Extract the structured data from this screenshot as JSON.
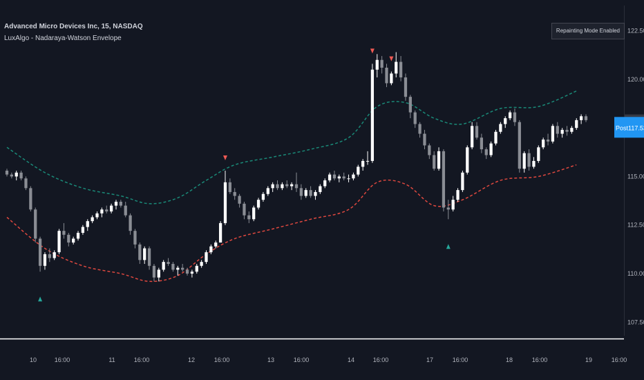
{
  "header": {
    "symbol_title": "Advanced Micro Devices Inc, 15, NASDAQ",
    "indicator_name": "LuxAlgo - Nadaraya-Watson Envelope",
    "repaint_notice": "Repainting Mode Enabled"
  },
  "price_labels": {
    "last_price": "117.91",
    "post_label": "Post",
    "post_price": "117.53"
  },
  "colors": {
    "background": "#131722",
    "candle_up": "#ffffff",
    "candle_down": "#8a8d94",
    "upper_band": "#1a8a78",
    "lower_band": "#e0483f",
    "sell_marker": "#f05a54",
    "buy_marker": "#26a69a",
    "post_tag": "#2196f3",
    "axis_line": "#ffffff"
  },
  "chart_data": {
    "type": "candlestick",
    "title": "Advanced Micro Devices Inc, 15, NASDAQ",
    "y_axis": {
      "ylim": [
        106.8,
        123.8
      ],
      "tick_labels": [
        "107.50",
        "110.00",
        "112.50",
        "115.00",
        "117.50",
        "120.00",
        "122.50"
      ],
      "position": "right"
    },
    "x_axis": {
      "tick_labels": [
        "10",
        "16:00",
        "11",
        "16:00",
        "12",
        "16:00",
        "13",
        "16:00",
        "14",
        "16:00",
        "17",
        "16:00",
        "18",
        "16:00",
        "19",
        "16:00"
      ]
    },
    "grid": false,
    "series": [
      {
        "name": "price",
        "kind": "ohlc",
        "points": [
          [
            115.3,
            115.4,
            115.0,
            115.1
          ],
          [
            115.1,
            115.2,
            114.9,
            115.0
          ],
          [
            115.0,
            115.3,
            114.8,
            115.2
          ],
          [
            115.2,
            115.3,
            114.8,
            114.9
          ],
          [
            114.9,
            115.0,
            114.3,
            114.4
          ],
          [
            114.4,
            114.5,
            113.2,
            113.3
          ],
          [
            113.3,
            113.4,
            111.6,
            111.8
          ],
          [
            111.8,
            111.9,
            110.1,
            110.4
          ],
          [
            110.4,
            111.1,
            110.2,
            111.0
          ],
          [
            111.0,
            111.3,
            110.6,
            110.8
          ],
          [
            110.8,
            111.2,
            110.7,
            111.1
          ],
          [
            111.1,
            112.3,
            111.0,
            112.2
          ],
          [
            112.2,
            112.6,
            111.8,
            112.0
          ],
          [
            112.0,
            112.1,
            111.4,
            111.6
          ],
          [
            111.6,
            111.9,
            111.5,
            111.8
          ],
          [
            111.8,
            112.2,
            111.7,
            112.1
          ],
          [
            112.1,
            112.5,
            112.0,
            112.4
          ],
          [
            112.4,
            112.8,
            112.2,
            112.7
          ],
          [
            112.7,
            113.0,
            112.6,
            112.9
          ],
          [
            112.9,
            113.2,
            112.8,
            113.1
          ],
          [
            113.1,
            113.4,
            112.9,
            113.3
          ],
          [
            113.3,
            113.5,
            113.1,
            113.2
          ],
          [
            113.2,
            113.6,
            113.1,
            113.5
          ],
          [
            113.5,
            113.8,
            113.3,
            113.7
          ],
          [
            113.7,
            113.8,
            113.4,
            113.5
          ],
          [
            113.5,
            113.7,
            112.9,
            113.0
          ],
          [
            113.0,
            113.1,
            112.0,
            112.2
          ],
          [
            112.2,
            112.3,
            111.3,
            111.5
          ],
          [
            111.5,
            111.6,
            110.5,
            110.7
          ],
          [
            110.7,
            111.4,
            110.5,
            111.3
          ],
          [
            111.3,
            111.4,
            110.2,
            110.4
          ],
          [
            110.4,
            110.5,
            109.6,
            109.8
          ],
          [
            109.8,
            110.3,
            109.6,
            110.2
          ],
          [
            110.2,
            110.7,
            110.1,
            110.6
          ],
          [
            110.6,
            110.8,
            110.4,
            110.5
          ],
          [
            110.5,
            110.6,
            110.1,
            110.2
          ],
          [
            110.2,
            110.4,
            109.9,
            110.3
          ],
          [
            110.3,
            110.5,
            110.1,
            110.2
          ],
          [
            110.2,
            110.3,
            109.9,
            110.0
          ],
          [
            110.0,
            110.2,
            109.8,
            110.1
          ],
          [
            110.1,
            110.5,
            110.0,
            110.4
          ],
          [
            110.4,
            110.7,
            110.3,
            110.6
          ],
          [
            110.6,
            111.2,
            110.5,
            111.1
          ],
          [
            111.1,
            111.5,
            111.0,
            111.4
          ],
          [
            111.4,
            111.7,
            111.3,
            111.6
          ],
          [
            111.6,
            112.7,
            112.0,
            112.6
          ],
          [
            112.6,
            115.3,
            112.5,
            114.7
          ],
          [
            114.7,
            114.9,
            114.1,
            114.2
          ],
          [
            114.2,
            114.4,
            113.8,
            114.0
          ],
          [
            114.0,
            114.1,
            113.4,
            113.6
          ],
          [
            113.6,
            113.7,
            112.8,
            113.0
          ],
          [
            113.0,
            113.2,
            112.6,
            112.8
          ],
          [
            112.8,
            113.5,
            112.7,
            113.4
          ],
          [
            113.4,
            113.9,
            113.3,
            113.8
          ],
          [
            113.8,
            114.2,
            113.7,
            114.1
          ],
          [
            114.1,
            114.5,
            114.0,
            114.4
          ],
          [
            114.4,
            114.7,
            114.2,
            114.6
          ],
          [
            114.6,
            114.8,
            114.3,
            114.4
          ],
          [
            114.4,
            114.7,
            114.3,
            114.6
          ],
          [
            114.6,
            114.8,
            114.4,
            114.5
          ],
          [
            114.5,
            114.7,
            114.3,
            114.6
          ],
          [
            114.6,
            115.2,
            114.2,
            114.4
          ],
          [
            114.4,
            114.6,
            113.8,
            114.0
          ],
          [
            114.0,
            114.4,
            113.9,
            114.3
          ],
          [
            114.3,
            114.5,
            113.9,
            114.0
          ],
          [
            114.0,
            114.3,
            113.8,
            114.2
          ],
          [
            114.2,
            114.6,
            114.1,
            114.5
          ],
          [
            114.5,
            114.9,
            114.4,
            114.8
          ],
          [
            114.8,
            115.2,
            114.7,
            115.1
          ],
          [
            115.1,
            115.3,
            114.8,
            114.9
          ],
          [
            114.9,
            115.1,
            114.7,
            115.0
          ],
          [
            115.0,
            115.2,
            114.8,
            114.9
          ],
          [
            114.9,
            115.1,
            114.7,
            114.9
          ],
          [
            114.9,
            115.2,
            114.8,
            115.1
          ],
          [
            115.1,
            115.6,
            115.0,
            115.5
          ],
          [
            115.5,
            115.9,
            115.3,
            115.8
          ],
          [
            115.8,
            116.3,
            115.6,
            115.8
          ],
          [
            115.8,
            120.8,
            115.7,
            120.5
          ],
          [
            120.5,
            121.3,
            120.1,
            121.0
          ],
          [
            121.0,
            121.2,
            120.3,
            120.6
          ],
          [
            120.6,
            120.8,
            119.6,
            119.8
          ],
          [
            119.8,
            120.4,
            119.7,
            120.3
          ],
          [
            120.3,
            121.4,
            120.1,
            120.9
          ],
          [
            120.9,
            121.2,
            119.9,
            120.1
          ],
          [
            120.1,
            120.3,
            118.9,
            119.1
          ],
          [
            119.1,
            119.2,
            118.0,
            118.3
          ],
          [
            118.3,
            118.4,
            117.5,
            117.7
          ],
          [
            117.7,
            117.8,
            117.0,
            117.2
          ],
          [
            117.2,
            117.4,
            116.4,
            116.6
          ],
          [
            116.6,
            116.7,
            115.9,
            116.1
          ],
          [
            116.1,
            116.3,
            115.3,
            115.4
          ],
          [
            115.4,
            116.5,
            115.3,
            116.3
          ],
          [
            116.3,
            116.4,
            113.2,
            113.4
          ],
          [
            113.4,
            113.8,
            112.8,
            113.3
          ],
          [
            113.3,
            114.0,
            113.2,
            113.8
          ],
          [
            113.8,
            114.4,
            113.7,
            114.3
          ],
          [
            114.3,
            115.3,
            114.2,
            115.2
          ],
          [
            115.2,
            116.6,
            115.1,
            116.5
          ],
          [
            116.5,
            117.8,
            116.4,
            117.6
          ],
          [
            117.6,
            117.8,
            116.9,
            117.0
          ],
          [
            117.0,
            117.2,
            116.2,
            116.4
          ],
          [
            116.4,
            116.5,
            115.9,
            116.1
          ],
          [
            116.1,
            116.8,
            116.0,
            116.7
          ],
          [
            116.7,
            117.4,
            116.6,
            117.3
          ],
          [
            117.3,
            117.8,
            117.2,
            117.7
          ],
          [
            117.7,
            118.1,
            117.5,
            118.0
          ],
          [
            118.0,
            118.4,
            117.9,
            118.3
          ],
          [
            118.3,
            118.5,
            117.6,
            117.8
          ],
          [
            117.8,
            117.9,
            115.2,
            115.4
          ],
          [
            115.4,
            116.3,
            115.2,
            116.2
          ],
          [
            116.2,
            116.4,
            115.3,
            115.5
          ],
          [
            115.5,
            116.0,
            115.4,
            115.8
          ],
          [
            115.8,
            116.6,
            115.7,
            116.5
          ],
          [
            116.5,
            117.0,
            116.4,
            116.9
          ],
          [
            116.9,
            117.2,
            116.6,
            116.8
          ],
          [
            116.8,
            117.7,
            116.7,
            117.6
          ],
          [
            117.6,
            117.8,
            117.0,
            117.2
          ],
          [
            117.2,
            117.5,
            117.0,
            117.4
          ],
          [
            117.4,
            117.6,
            117.1,
            117.3
          ],
          [
            117.3,
            117.6,
            117.2,
            117.5
          ],
          [
            117.5,
            118.0,
            117.4,
            117.9
          ],
          [
            117.9,
            118.2,
            117.7,
            118.1
          ],
          [
            118.1,
            118.2,
            117.8,
            117.9
          ]
        ]
      },
      {
        "name": "upper envelope",
        "kind": "line",
        "values": [
          [
            0,
            116.5
          ],
          [
            8,
            115.2
          ],
          [
            16,
            114.4
          ],
          [
            24,
            114.0
          ],
          [
            30,
            113.6
          ],
          [
            36,
            113.9
          ],
          [
            42,
            114.8
          ],
          [
            48,
            115.6
          ],
          [
            56,
            116.0
          ],
          [
            64,
            116.4
          ],
          [
            72,
            117.0
          ],
          [
            78,
            118.6
          ],
          [
            84,
            118.8
          ],
          [
            90,
            118.0
          ],
          [
            96,
            117.7
          ],
          [
            104,
            118.5
          ],
          [
            112,
            118.6
          ],
          [
            120,
            119.4
          ]
        ]
      },
      {
        "name": "lower envelope",
        "kind": "line",
        "values": [
          [
            0,
            112.9
          ],
          [
            8,
            111.3
          ],
          [
            16,
            110.4
          ],
          [
            24,
            110.0
          ],
          [
            30,
            109.6
          ],
          [
            36,
            109.9
          ],
          [
            42,
            111.0
          ],
          [
            48,
            111.8
          ],
          [
            56,
            112.3
          ],
          [
            64,
            112.8
          ],
          [
            72,
            113.3
          ],
          [
            78,
            114.7
          ],
          [
            84,
            114.6
          ],
          [
            90,
            113.5
          ],
          [
            96,
            113.8
          ],
          [
            104,
            114.8
          ],
          [
            112,
            115.0
          ],
          [
            120,
            115.6
          ]
        ]
      }
    ],
    "markers": [
      {
        "type": "sell",
        "index": 46
      },
      {
        "type": "sell",
        "index": 77
      },
      {
        "type": "sell",
        "index": 81
      },
      {
        "type": "buy",
        "index": 7
      },
      {
        "type": "buy",
        "index": 93
      }
    ]
  }
}
